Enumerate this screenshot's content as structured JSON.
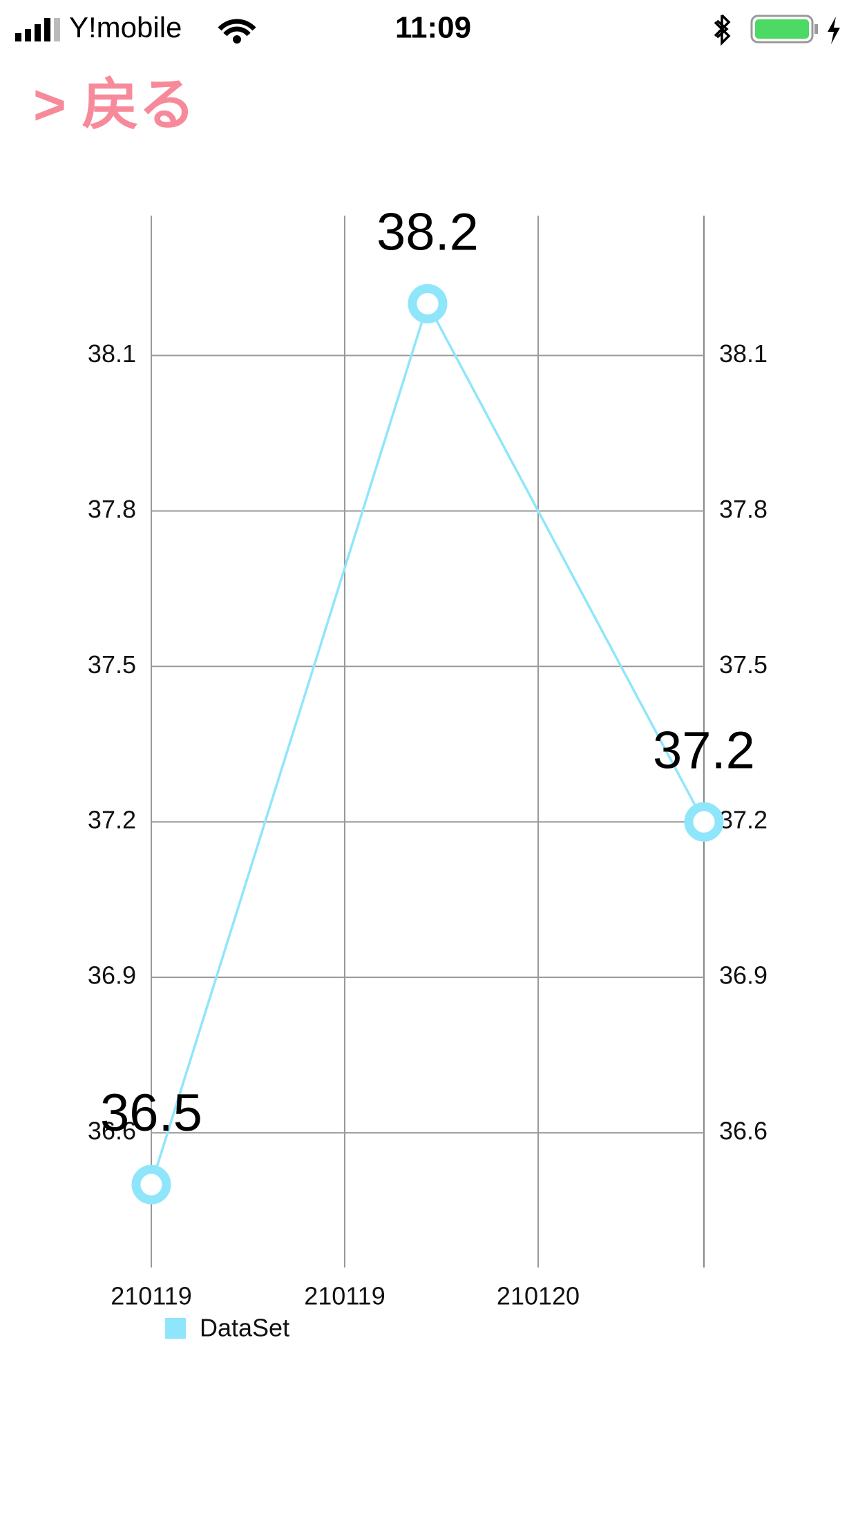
{
  "status_bar": {
    "carrier": "Y!mobile",
    "time": "11:09"
  },
  "nav": {
    "back": "> 戻る"
  },
  "chart_data": {
    "type": "line",
    "x": [
      0,
      0.5,
      1
    ],
    "series": [
      {
        "name": "DataSet",
        "color": "#8fe6fb",
        "values": [
          36.5,
          38.2,
          37.2
        ]
      }
    ],
    "xlim": [
      0,
      1
    ],
    "xticks": [
      {
        "value": 0,
        "label": "210119"
      },
      {
        "value": 0.35,
        "label": "210119"
      },
      {
        "value": 0.7,
        "label": "210120"
      }
    ],
    "ylim": [
      36.34,
      38.37
    ],
    "yticks": [
      36.6,
      36.9,
      37.2,
      37.5,
      37.8,
      38.1
    ],
    "grid": true,
    "legend": "bottom-left"
  }
}
